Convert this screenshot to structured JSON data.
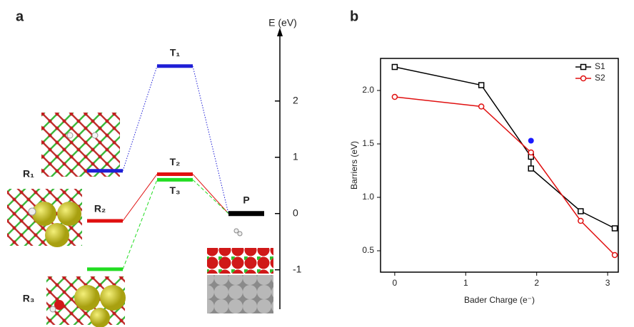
{
  "chart_data": [
    {
      "type": "energy-diagram",
      "panel": "a",
      "ylabel": "E (eV)",
      "ylim": [
        -1.7,
        3.2
      ],
      "yticks": [
        -1,
        0,
        1,
        2
      ],
      "series": [
        {
          "labels": [
            "R₁",
            "T₁"
          ],
          "color": "#1f1fd6",
          "dash": "dotted",
          "values": [
            0.76,
            2.62
          ]
        },
        {
          "labels": [
            "R₂",
            "T₂"
          ],
          "color": "#e01010",
          "dash": "solid",
          "values": [
            -0.13,
            0.7
          ]
        },
        {
          "labels": [
            "R₃",
            "T₃"
          ],
          "color": "#22dd22",
          "dash": "dashed",
          "values": [
            -0.99,
            0.6
          ]
        }
      ],
      "product": {
        "label": "P",
        "value": 0,
        "color": "#000000"
      }
    },
    {
      "type": "line",
      "panel": "b",
      "xlabel": "Bader Charge (e⁻)",
      "ylabel": "Barriers (eV)",
      "xlim": [
        -0.2,
        3.15
      ],
      "xticks": [
        0,
        1,
        2,
        3
      ],
      "ylim": [
        0.3,
        2.3
      ],
      "yticks": [
        0.5,
        {
          "value": 1,
          "label": "1.0"
        },
        1.5,
        {
          "value": 2,
          "label": "2.0"
        }
      ],
      "legend": "upper right",
      "series": [
        {
          "name": "S1",
          "color": "#000000",
          "marker": "square",
          "x": [
            0,
            1.22,
            1.92,
            1.92,
            2.62,
            3.1
          ],
          "values": [
            2.22,
            2.05,
            1.38,
            1.27,
            0.87,
            0.71
          ]
        },
        {
          "name": "S2",
          "color": "#e01010",
          "marker": "circle",
          "x": [
            0,
            1.22,
            1.92,
            2.62,
            3.1
          ],
          "values": [
            1.94,
            1.85,
            1.42,
            0.78,
            0.46
          ]
        },
        {
          "color": "#1a1aff",
          "marker": "dot",
          "x": [
            1.92
          ],
          "values": [
            1.53
          ]
        }
      ]
    }
  ]
}
